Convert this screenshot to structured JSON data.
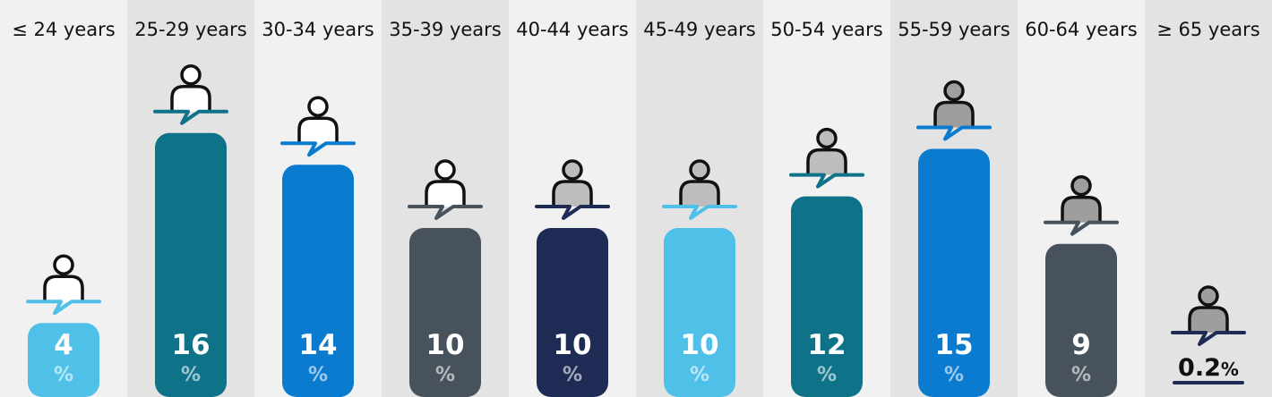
{
  "chart_data": {
    "type": "bar",
    "categories": [
      "≤ 24 years",
      "25-29 years",
      "30-34 years",
      "35-39 years",
      "40-44 years",
      "45-49 years",
      "50-54 years",
      "55-59 years",
      "60-64 years",
      "≥ 65 years"
    ],
    "values": [
      4,
      16,
      14,
      10,
      10,
      10,
      12,
      15,
      9,
      0.2
    ],
    "value_labels": [
      "4",
      "16",
      "14",
      "10",
      "10",
      "10",
      "12",
      "15",
      "9",
      "0.2"
    ],
    "unit": "%",
    "bar_colors": [
      "#4fc1e9",
      "#0e7289",
      "#0a7bcf",
      "#47525c",
      "#1e2c55",
      "#4fc1e9",
      "#0e7289",
      "#0a7bcf",
      "#47525c",
      "#1e2c55"
    ],
    "icon_fills": [
      "#ffffff",
      "#ffffff",
      "#ffffff",
      "#ffffff",
      "#bdbdbd",
      "#bdbdbd",
      "#bdbdbd",
      "#9e9e9e",
      "#9e9e9e",
      "#9e9e9e"
    ],
    "column_backgrounds": [
      "#f1f1f1",
      "#e3e3e3"
    ],
    "icon": "person-speech-icon",
    "title": "",
    "xlabel": "",
    "ylabel": ""
  }
}
